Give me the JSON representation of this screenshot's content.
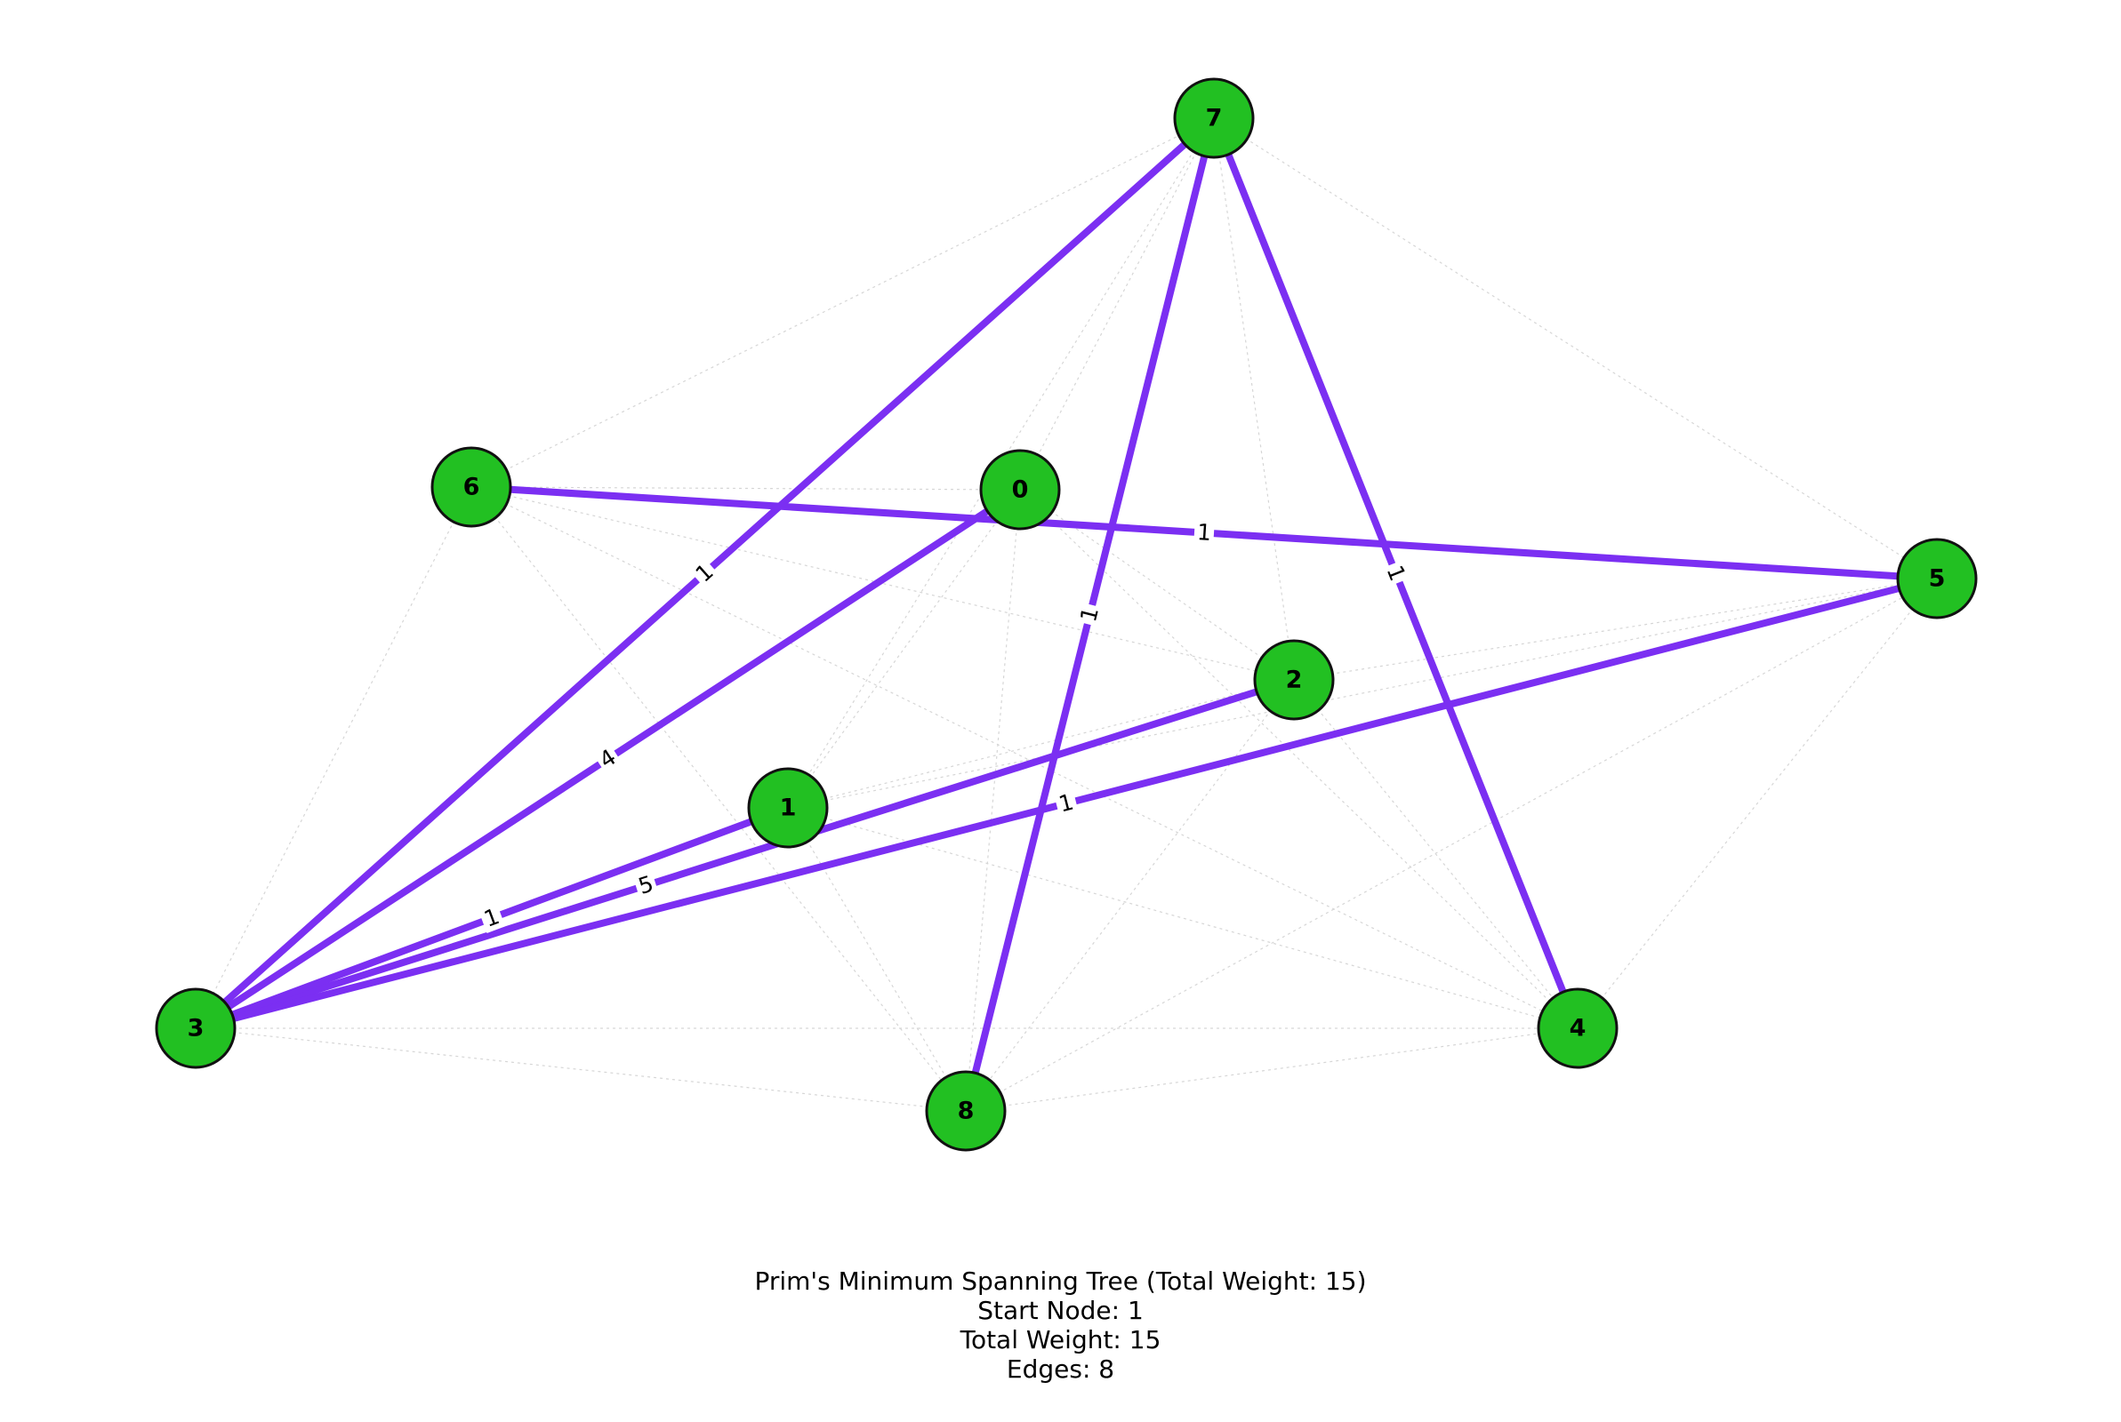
{
  "colors": {
    "node_fill": "#22c022",
    "node_stroke": "#111111",
    "mst_edge": "#7b2ff2",
    "background_edge": "#d6d6d6",
    "label_text": "#000000"
  },
  "graph": {
    "nodes": [
      {
        "id": "0",
        "label": "0"
      },
      {
        "id": "1",
        "label": "1"
      },
      {
        "id": "2",
        "label": "2"
      },
      {
        "id": "3",
        "label": "3"
      },
      {
        "id": "4",
        "label": "4"
      },
      {
        "id": "5",
        "label": "5"
      },
      {
        "id": "6",
        "label": "6"
      },
      {
        "id": "7",
        "label": "7"
      },
      {
        "id": "8",
        "label": "8"
      }
    ],
    "mst_edges": [
      {
        "source": "7",
        "target": "3",
        "weight": "1"
      },
      {
        "source": "7",
        "target": "8",
        "weight": "1"
      },
      {
        "source": "7",
        "target": "4",
        "weight": "1"
      },
      {
        "source": "6",
        "target": "5",
        "weight": "1"
      },
      {
        "source": "0",
        "target": "3",
        "weight": "4"
      },
      {
        "source": "2",
        "target": "3",
        "weight": "5"
      },
      {
        "source": "1",
        "target": "3",
        "weight": "1"
      },
      {
        "source": "5",
        "target": "3",
        "weight": "1"
      }
    ],
    "background_edges": [
      [
        "6",
        "3"
      ],
      [
        "6",
        "2"
      ],
      [
        "6",
        "4"
      ],
      [
        "6",
        "8"
      ],
      [
        "6",
        "7"
      ],
      [
        "6",
        "0"
      ],
      [
        "7",
        "5"
      ],
      [
        "7",
        "2"
      ],
      [
        "7",
        "1"
      ],
      [
        "7",
        "0"
      ],
      [
        "0",
        "2"
      ],
      [
        "0",
        "4"
      ],
      [
        "0",
        "8"
      ],
      [
        "0",
        "1"
      ],
      [
        "1",
        "2"
      ],
      [
        "1",
        "4"
      ],
      [
        "1",
        "8"
      ],
      [
        "2",
        "5"
      ],
      [
        "2",
        "8"
      ],
      [
        "2",
        "4"
      ],
      [
        "3",
        "4"
      ],
      [
        "3",
        "8"
      ],
      [
        "4",
        "5"
      ],
      [
        "8",
        "5"
      ],
      [
        "8",
        "4"
      ],
      [
        "1",
        "5"
      ]
    ]
  },
  "caption": {
    "title": "Prim's Minimum Spanning Tree (Total Weight: 15)",
    "start_node": "Start Node: 1",
    "total_weight": "Total Weight: 15",
    "edges": "Edges: 8"
  }
}
